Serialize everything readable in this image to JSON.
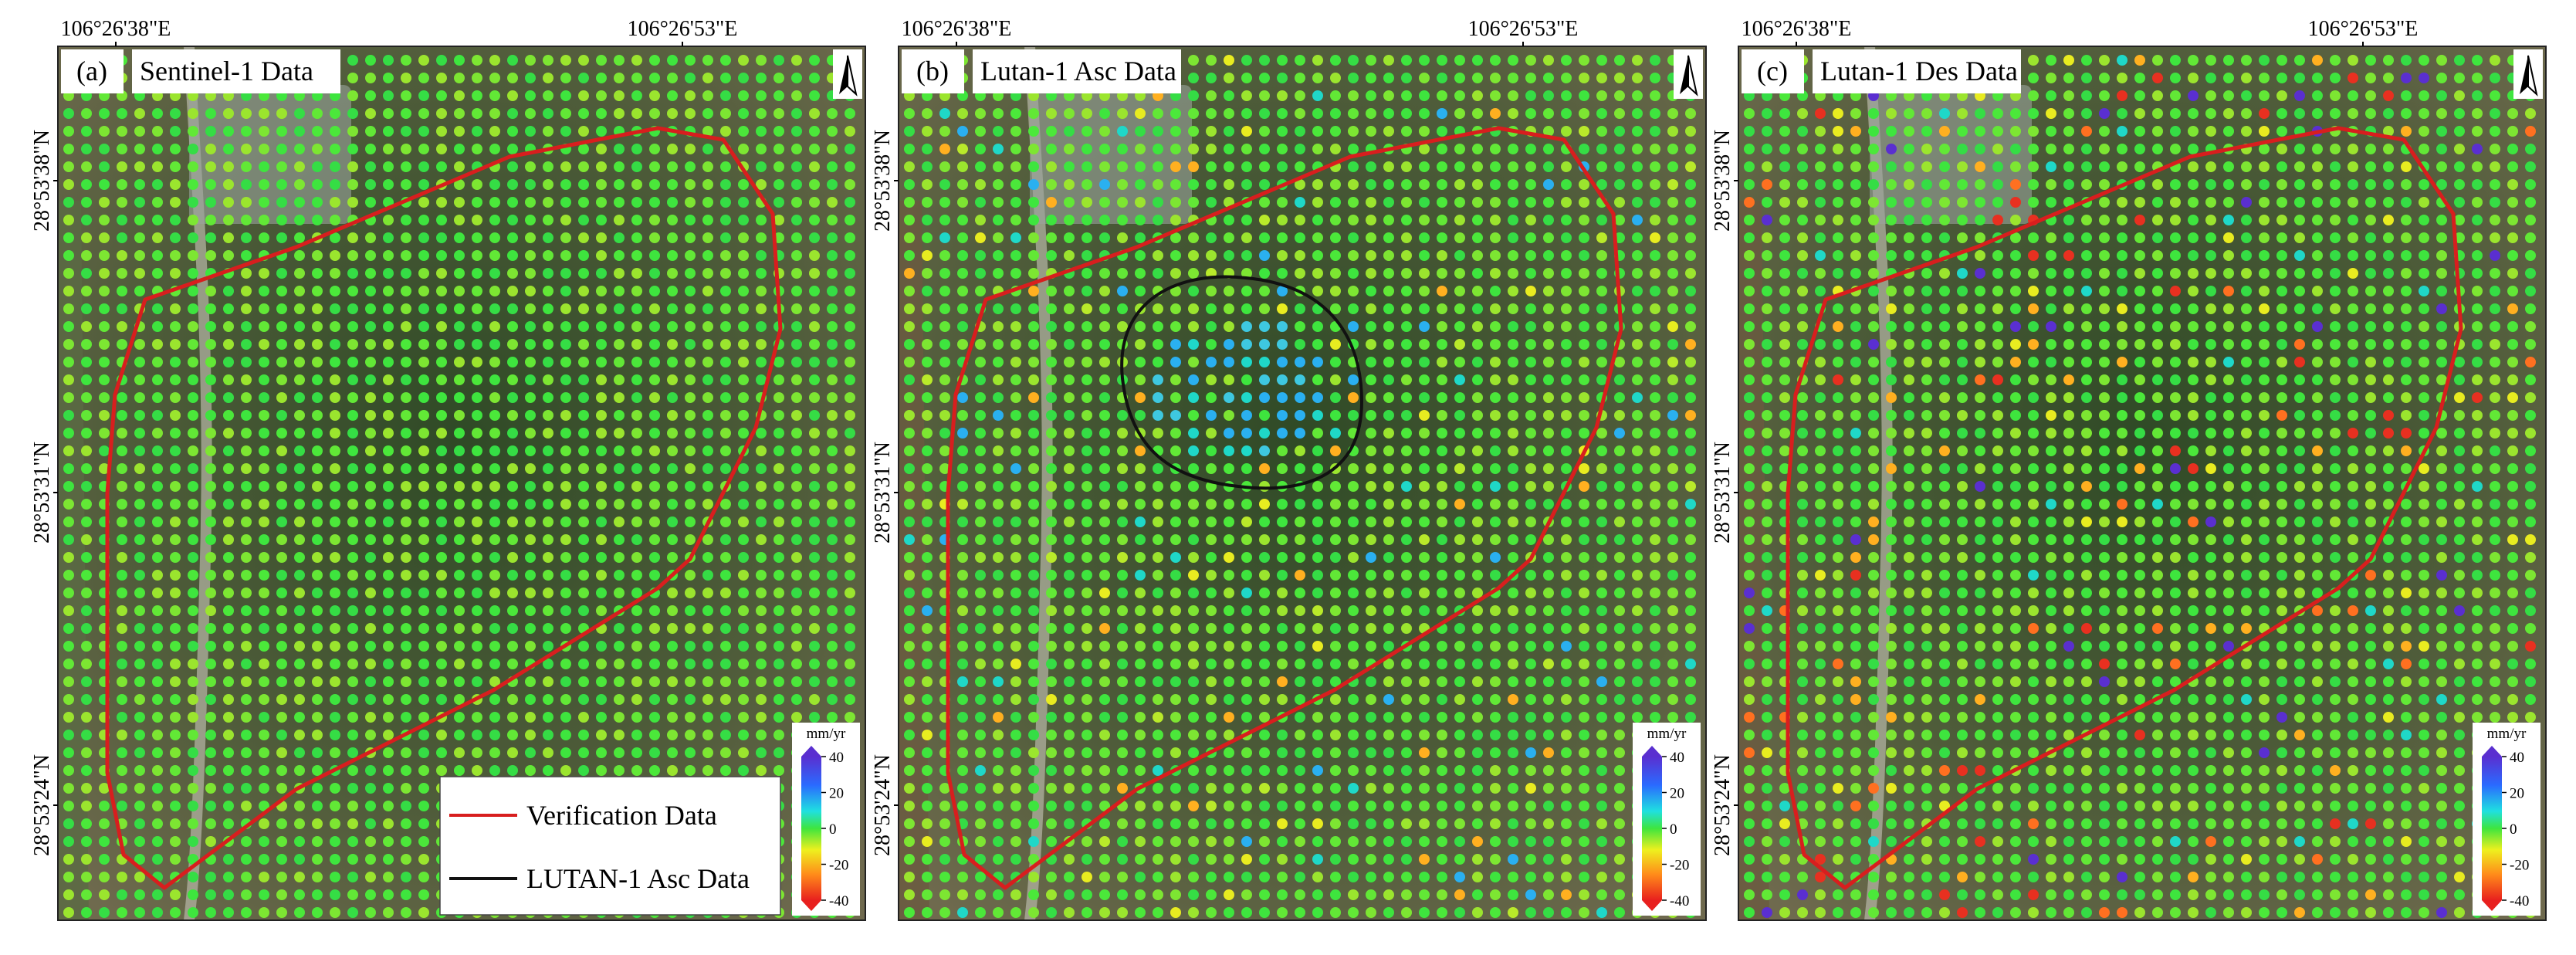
{
  "panels": [
    {
      "label": "(a)",
      "title": "Sentinel-1 Data",
      "x_labels": [
        "106°26'38\"E",
        "106°26'53\"E"
      ],
      "y_labels": [
        "28°53'38\"N",
        "28°53'31\"N",
        "28°53'24\"N"
      ],
      "colorbar": {
        "unit": "mm/yr",
        "ticks": [
          40,
          20,
          0,
          -20,
          -40
        ]
      }
    },
    {
      "label": "(b)",
      "title": "Lutan-1 Asc Data",
      "x_labels": [
        "106°26'38\"E",
        "106°26'53\"E"
      ],
      "y_labels": [
        "28°53'38\"N",
        "28°53'31\"N",
        "28°53'24\"N"
      ],
      "colorbar": {
        "unit": "mm/yr",
        "ticks": [
          40,
          20,
          0,
          -20,
          -40
        ]
      }
    },
    {
      "label": "(c)",
      "title": "Lutan-1 Des Data",
      "x_labels": [
        "106°26'38\"E",
        "106°26'53\"E"
      ],
      "y_labels": [
        "28°53'38\"N",
        "28°53'31\"N",
        "28°53'24\"N"
      ],
      "colorbar": {
        "unit": "mm/yr",
        "ticks": [
          40,
          20,
          0,
          -20,
          -40
        ]
      }
    }
  ],
  "legend": {
    "items": [
      "Verification Data",
      "LUTAN-1 Asc Data"
    ]
  }
}
